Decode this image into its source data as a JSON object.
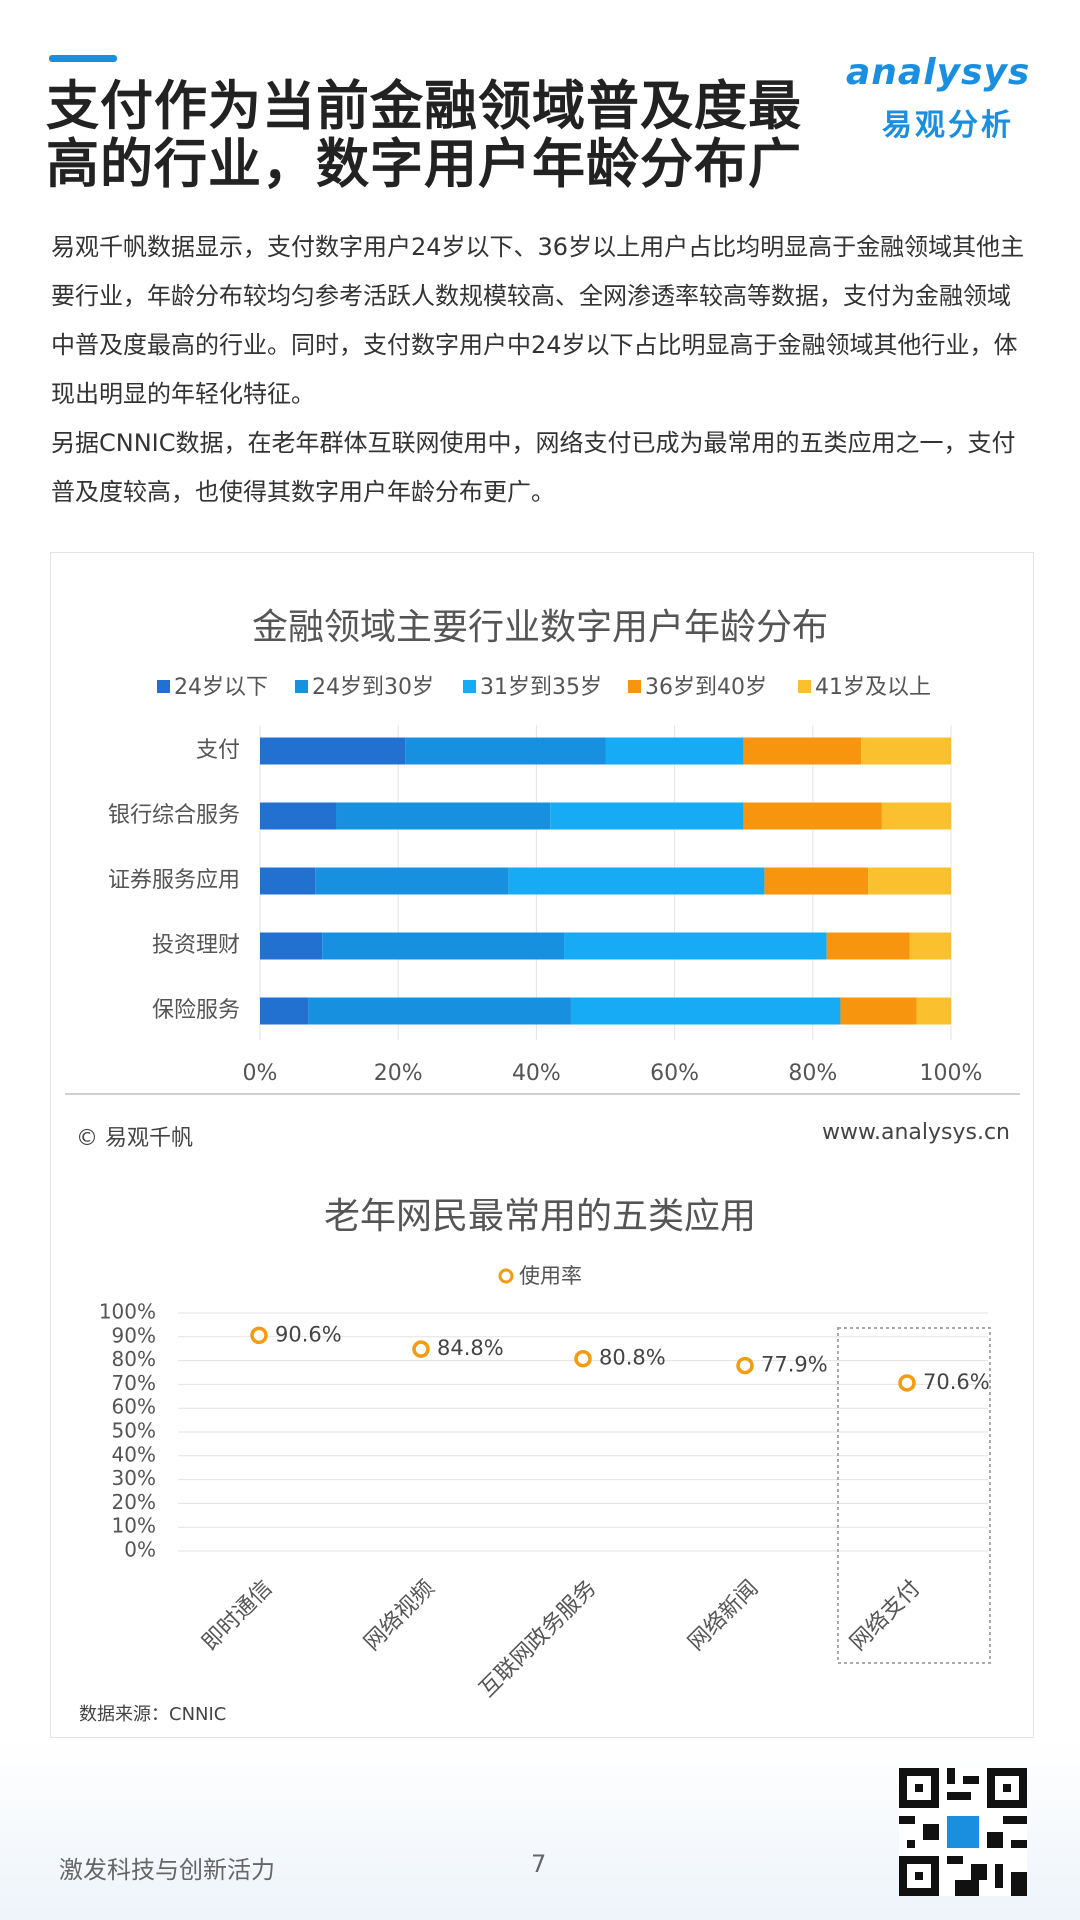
{
  "header": {
    "title": "支付作为当前金融领域普及度最高的行业，数字用户年龄分布广",
    "logo": {
      "name": "analysys",
      "cn": "易观分析"
    }
  },
  "paragraphs": [
    "易观千帆数据显示，支付数字用户24岁以下、36岁以上用户占比均明显高于金融领域其他主要行业，年龄分布较均匀参考活跃人数规模较高、全网渗透率较高等数据，支付为金融领域中普及度最高的行业。同时，支付数字用户中24岁以下占比明显高于金融领域其他行业，体现出明显的年轻化特征。",
    "另据CNNIC数据，在老年群体互联网使用中，网络支付已成为最常用的五类应用之一，支付普及度较高，也使得其数字用户年龄分布更广。"
  ],
  "chart_data": [
    {
      "type": "bar",
      "orientation": "horizontal",
      "stacked": true,
      "title": "金融领域主要行业数字用户年龄分布",
      "categories": [
        "支付",
        "银行综合服务",
        "证券服务应用",
        "投资理财",
        "保险服务"
      ],
      "series": [
        {
          "name": "24岁以下",
          "color": "#2270d0",
          "values": [
            21,
            11,
            8,
            9,
            7
          ]
        },
        {
          "name": "24岁到30岁",
          "color": "#1890e0",
          "values": [
            29,
            31,
            28,
            35,
            38
          ]
        },
        {
          "name": "31岁到35岁",
          "color": "#17aaf5",
          "values": [
            20,
            28,
            37,
            38,
            39
          ]
        },
        {
          "name": "36岁到40岁",
          "color": "#f7960e",
          "values": [
            17,
            20,
            15,
            12,
            11
          ]
        },
        {
          "name": "41岁及以上",
          "color": "#fbc02d",
          "values": [
            13,
            10,
            12,
            6,
            5
          ]
        }
      ],
      "xlim": [
        0,
        100
      ],
      "xticks": [
        {
          "value": 0,
          "label": "0%"
        },
        {
          "value": 20,
          "label": "20%"
        },
        {
          "value": 40,
          "label": "40%"
        },
        {
          "value": 60,
          "label": "60%"
        },
        {
          "value": 80,
          "label": "80%"
        },
        {
          "value": 100,
          "label": "100%"
        }
      ],
      "grid": true,
      "legend": "top",
      "copyright": "© 易观千帆",
      "website": "www.analysys.cn"
    },
    {
      "type": "scatter",
      "title": "老年网民最常用的五类应用",
      "categories": [
        "即时通信",
        "网络视频",
        "互联网政务服务",
        "网络新闻",
        "网络支付"
      ],
      "series": [
        {
          "name": "使用率",
          "color": "#f39c12",
          "values": [
            90.6,
            84.8,
            80.8,
            77.9,
            70.6
          ],
          "value_labels": [
            "90.6%",
            "84.8%",
            "80.8%",
            "77.9%",
            "70.6%"
          ]
        }
      ],
      "ylim": [
        0,
        100
      ],
      "yticks": [
        {
          "value": 0,
          "label": "0%"
        },
        {
          "value": 10,
          "label": "10%"
        },
        {
          "value": 20,
          "label": "20%"
        },
        {
          "value": 30,
          "label": "30%"
        },
        {
          "value": 40,
          "label": "40%"
        },
        {
          "value": 50,
          "label": "50%"
        },
        {
          "value": 60,
          "label": "60%"
        },
        {
          "value": 70,
          "label": "70%"
        },
        {
          "value": 80,
          "label": "80%"
        },
        {
          "value": 90,
          "label": "90%"
        },
        {
          "value": 100,
          "label": "100%"
        }
      ],
      "grid": true,
      "legend": "top",
      "source": "数据来源：CNNIC"
    }
  ],
  "footer": {
    "slogan": "激发科技与创新活力",
    "page": 7
  }
}
